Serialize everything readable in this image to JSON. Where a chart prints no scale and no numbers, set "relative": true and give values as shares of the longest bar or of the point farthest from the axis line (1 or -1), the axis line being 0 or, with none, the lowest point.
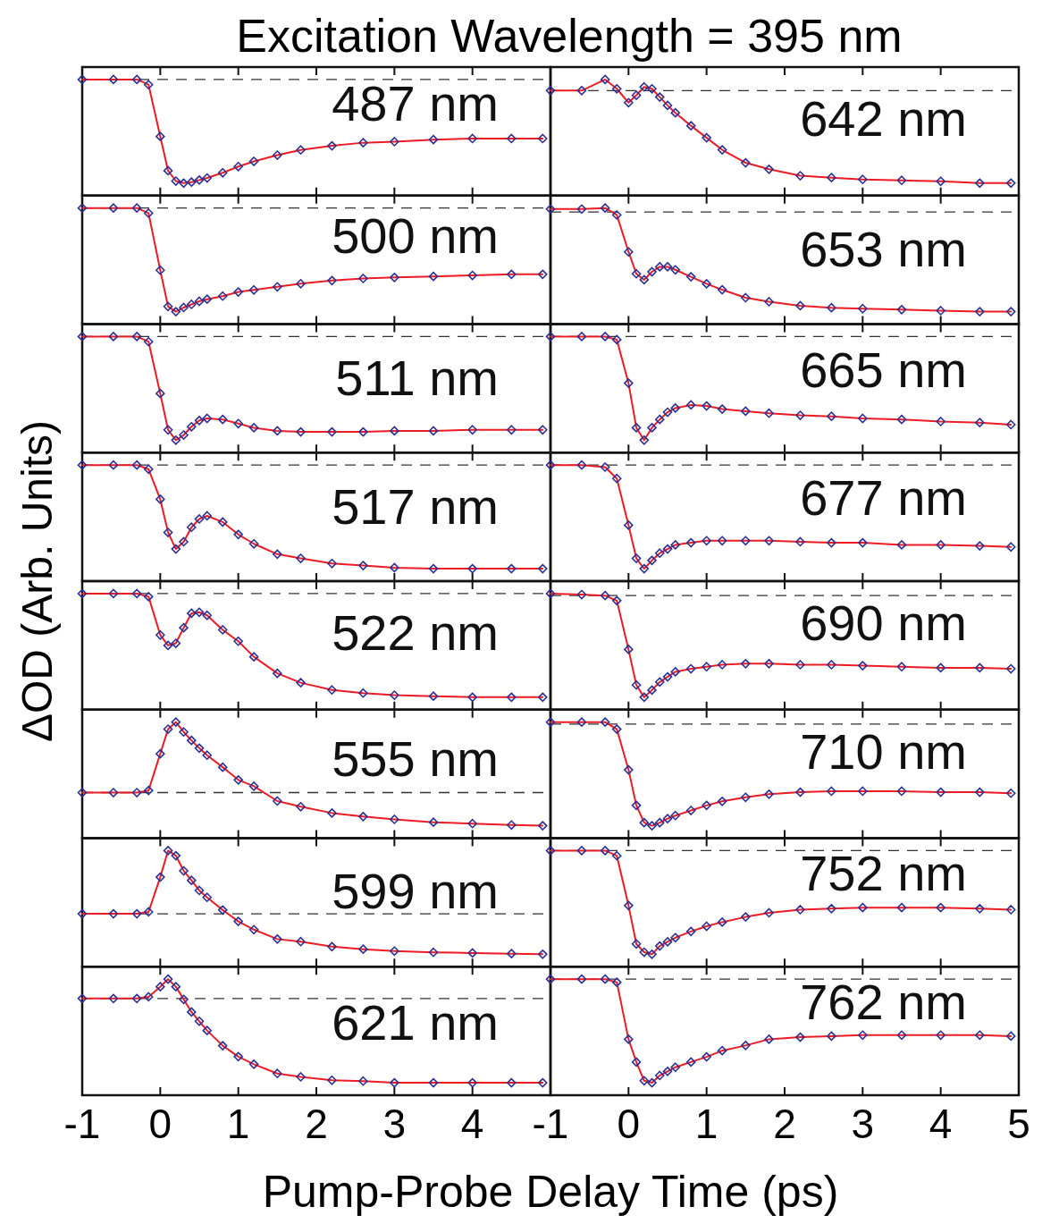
{
  "chart_data": [
    {
      "type": "line",
      "title": "Excitation Wavelength = 395 nm",
      "ylabel": "ΔOD (Arb. Units)",
      "relative": true,
      "xlim": [
        -1,
        5
      ],
      "xticks": [
        -1,
        0,
        1,
        2,
        3,
        4
      ],
      "tick_labels": false,
      "marker": "diamond",
      "ref_lines": [
        {
          "axis": "y",
          "value": 0,
          "line_style": "dashed"
        }
      ],
      "annotations": [
        "487 nm"
      ],
      "x": [
        -1,
        -0.6,
        -0.3,
        -0.15,
        0,
        0.1,
        0.2,
        0.3,
        0.4,
        0.5,
        0.6,
        0.8,
        1,
        1.2,
        1.5,
        1.8,
        2.2,
        2.6,
        3,
        3.5,
        4,
        4.5,
        4.9
      ],
      "series": [
        {
          "type": "scatter",
          "color": "#2e3192",
          "values": [
            0,
            0,
            0,
            -0.05,
            -0.55,
            -0.88,
            -0.98,
            -1,
            -0.99,
            -0.97,
            -0.95,
            -0.9,
            -0.84,
            -0.79,
            -0.73,
            -0.68,
            -0.64,
            -0.61,
            -0.6,
            -0.58,
            -0.57,
            -0.57,
            -0.57
          ]
        },
        {
          "type": "line",
          "color": "#ed1c24",
          "marker": "none",
          "values": [
            0,
            0,
            0,
            -0.05,
            -0.55,
            -0.88,
            -0.98,
            -1,
            -0.99,
            -0.97,
            -0.95,
            -0.9,
            -0.84,
            -0.79,
            -0.73,
            -0.68,
            -0.64,
            -0.61,
            -0.6,
            -0.58,
            -0.57,
            -0.57,
            -0.57
          ]
        }
      ]
    },
    {
      "type": "line",
      "relative": true,
      "xlim": [
        -1,
        5
      ],
      "xticks": [
        -1,
        0,
        1,
        2,
        3,
        4,
        5
      ],
      "tick_labels": false,
      "marker": "diamond",
      "ref_lines": [
        {
          "axis": "y",
          "value": 0,
          "line_style": "dashed"
        }
      ],
      "annotations": [
        "642 nm"
      ],
      "x": [
        -1,
        -0.6,
        -0.3,
        -0.15,
        0,
        0.1,
        0.2,
        0.3,
        0.4,
        0.5,
        0.6,
        0.8,
        1,
        1.2,
        1.5,
        1.8,
        2.2,
        2.6,
        3,
        3.5,
        4,
        4.5,
        4.9
      ],
      "series": [
        {
          "type": "scatter",
          "color": "#2e3192",
          "values": [
            0,
            0,
            0.12,
            0.02,
            -0.13,
            -0.05,
            0.04,
            0.02,
            -0.07,
            -0.16,
            -0.24,
            -0.38,
            -0.51,
            -0.64,
            -0.78,
            -0.85,
            -0.92,
            -0.94,
            -0.96,
            -0.97,
            -0.98,
            -1,
            -1
          ]
        },
        {
          "type": "line",
          "color": "#ed1c24",
          "marker": "none",
          "values": [
            0,
            0,
            0.12,
            0.02,
            -0.13,
            -0.05,
            0.04,
            0.02,
            -0.07,
            -0.16,
            -0.24,
            -0.38,
            -0.51,
            -0.64,
            -0.78,
            -0.85,
            -0.92,
            -0.94,
            -0.96,
            -0.97,
            -0.98,
            -1,
            -1
          ]
        }
      ]
    },
    {
      "type": "line",
      "relative": true,
      "xlim": [
        -1,
        5
      ],
      "xticks": [
        -1,
        0,
        1,
        2,
        3,
        4
      ],
      "tick_labels": false,
      "marker": "diamond",
      "ref_lines": [
        {
          "axis": "y",
          "value": 0,
          "line_style": "dashed"
        }
      ],
      "annotations": [
        "500 nm"
      ],
      "x": [
        -1,
        -0.6,
        -0.3,
        -0.15,
        0,
        0.1,
        0.2,
        0.3,
        0.4,
        0.5,
        0.6,
        0.8,
        1,
        1.2,
        1.5,
        1.8,
        2.2,
        2.6,
        3,
        3.5,
        4,
        4.5,
        4.9
      ],
      "series": [
        {
          "type": "scatter",
          "color": "#2e3192",
          "values": [
            0,
            0,
            0,
            -0.05,
            -0.6,
            -0.95,
            -1,
            -0.96,
            -0.93,
            -0.9,
            -0.88,
            -0.85,
            -0.81,
            -0.79,
            -0.76,
            -0.73,
            -0.7,
            -0.68,
            -0.67,
            -0.66,
            -0.65,
            -0.64,
            -0.64
          ]
        },
        {
          "type": "line",
          "color": "#ed1c24",
          "marker": "none",
          "values": [
            0,
            0,
            0,
            -0.05,
            -0.6,
            -0.95,
            -1,
            -0.96,
            -0.93,
            -0.9,
            -0.88,
            -0.85,
            -0.81,
            -0.79,
            -0.76,
            -0.73,
            -0.7,
            -0.68,
            -0.67,
            -0.66,
            -0.65,
            -0.64,
            -0.64
          ]
        }
      ]
    },
    {
      "type": "line",
      "relative": true,
      "xlim": [
        -1,
        5
      ],
      "xticks": [
        -1,
        0,
        1,
        2,
        3,
        4,
        5
      ],
      "tick_labels": false,
      "marker": "diamond",
      "ref_lines": [
        {
          "axis": "y",
          "value": 0,
          "line_style": "dashed"
        }
      ],
      "annotations": [
        "653 nm"
      ],
      "x": [
        -1,
        -0.6,
        -0.3,
        -0.15,
        0,
        0.1,
        0.2,
        0.3,
        0.4,
        0.5,
        0.6,
        0.8,
        1,
        1.2,
        1.5,
        1.8,
        2.2,
        2.6,
        3,
        3.5,
        4,
        4.5,
        4.9
      ],
      "series": [
        {
          "type": "scatter",
          "color": "#2e3192",
          "values": [
            0.03,
            0.03,
            0.04,
            -0.03,
            -0.4,
            -0.62,
            -0.68,
            -0.6,
            -0.55,
            -0.55,
            -0.58,
            -0.65,
            -0.72,
            -0.78,
            -0.86,
            -0.9,
            -0.94,
            -0.96,
            -0.97,
            -0.98,
            -0.99,
            -1,
            -1
          ]
        },
        {
          "type": "line",
          "color": "#ed1c24",
          "marker": "none",
          "values": [
            0.03,
            0.03,
            0.04,
            -0.03,
            -0.4,
            -0.62,
            -0.68,
            -0.6,
            -0.55,
            -0.55,
            -0.58,
            -0.65,
            -0.72,
            -0.78,
            -0.86,
            -0.9,
            -0.94,
            -0.96,
            -0.97,
            -0.98,
            -0.99,
            -1,
            -1
          ]
        }
      ]
    },
    {
      "type": "line",
      "relative": true,
      "xlim": [
        -1,
        5
      ],
      "xticks": [
        -1,
        0,
        1,
        2,
        3,
        4
      ],
      "tick_labels": false,
      "marker": "diamond",
      "ref_lines": [
        {
          "axis": "y",
          "value": 0,
          "line_style": "dashed"
        }
      ],
      "annotations": [
        "511 nm"
      ],
      "x": [
        -1,
        -0.6,
        -0.3,
        -0.15,
        0,
        0.1,
        0.2,
        0.3,
        0.4,
        0.5,
        0.6,
        0.8,
        1,
        1.2,
        1.5,
        1.8,
        2.2,
        2.6,
        3,
        3.5,
        4,
        4.5,
        4.9
      ],
      "series": [
        {
          "type": "scatter",
          "color": "#2e3192",
          "values": [
            0,
            0,
            0,
            -0.05,
            -0.55,
            -0.9,
            -1,
            -0.95,
            -0.87,
            -0.81,
            -0.79,
            -0.8,
            -0.84,
            -0.88,
            -0.91,
            -0.92,
            -0.92,
            -0.92,
            -0.91,
            -0.91,
            -0.9,
            -0.9,
            -0.9
          ]
        },
        {
          "type": "line",
          "color": "#ed1c24",
          "marker": "none",
          "values": [
            0,
            0,
            0,
            -0.05,
            -0.55,
            -0.9,
            -1,
            -0.95,
            -0.87,
            -0.81,
            -0.79,
            -0.8,
            -0.84,
            -0.88,
            -0.91,
            -0.92,
            -0.92,
            -0.92,
            -0.91,
            -0.91,
            -0.9,
            -0.9,
            -0.9
          ]
        }
      ]
    },
    {
      "type": "line",
      "relative": true,
      "xlim": [
        -1,
        5
      ],
      "xticks": [
        -1,
        0,
        1,
        2,
        3,
        4,
        5
      ],
      "tick_labels": false,
      "marker": "diamond",
      "ref_lines": [
        {
          "axis": "y",
          "value": 0,
          "line_style": "dashed"
        }
      ],
      "annotations": [
        "665 nm"
      ],
      "x": [
        -1,
        -0.6,
        -0.3,
        -0.15,
        0,
        0.1,
        0.2,
        0.3,
        0.4,
        0.5,
        0.6,
        0.8,
        1,
        1.2,
        1.5,
        1.8,
        2.2,
        2.6,
        3,
        3.5,
        4,
        4.5,
        4.9
      ],
      "series": [
        {
          "type": "scatter",
          "color": "#2e3192",
          "values": [
            0,
            0,
            0,
            -0.03,
            -0.45,
            -0.88,
            -1,
            -0.88,
            -0.8,
            -0.73,
            -0.69,
            -0.66,
            -0.67,
            -0.7,
            -0.72,
            -0.74,
            -0.76,
            -0.77,
            -0.79,
            -0.8,
            -0.82,
            -0.83,
            -0.85
          ]
        },
        {
          "type": "line",
          "color": "#ed1c24",
          "marker": "none",
          "values": [
            0,
            0,
            0,
            -0.03,
            -0.45,
            -0.88,
            -1,
            -0.88,
            -0.8,
            -0.73,
            -0.69,
            -0.66,
            -0.67,
            -0.7,
            -0.72,
            -0.74,
            -0.76,
            -0.77,
            -0.79,
            -0.8,
            -0.82,
            -0.83,
            -0.85
          ]
        }
      ]
    },
    {
      "type": "line",
      "relative": true,
      "xlim": [
        -1,
        5
      ],
      "xticks": [
        -1,
        0,
        1,
        2,
        3,
        4
      ],
      "tick_labels": false,
      "marker": "diamond",
      "ref_lines": [
        {
          "axis": "y",
          "value": 0,
          "line_style": "dashed"
        }
      ],
      "annotations": [
        "517 nm"
      ],
      "x": [
        -1,
        -0.6,
        -0.3,
        -0.15,
        0,
        0.1,
        0.2,
        0.3,
        0.4,
        0.5,
        0.6,
        0.8,
        1,
        1.2,
        1.5,
        1.8,
        2.2,
        2.6,
        3,
        3.5,
        4,
        4.5,
        4.9
      ],
      "series": [
        {
          "type": "scatter",
          "color": "#2e3192",
          "values": [
            0,
            0,
            0,
            -0.04,
            -0.33,
            -0.65,
            -0.81,
            -0.74,
            -0.6,
            -0.52,
            -0.49,
            -0.55,
            -0.67,
            -0.76,
            -0.86,
            -0.9,
            -0.95,
            -0.97,
            -0.99,
            -1,
            -1,
            -1,
            -1
          ]
        },
        {
          "type": "line",
          "color": "#ed1c24",
          "marker": "none",
          "values": [
            0,
            0,
            0,
            -0.04,
            -0.33,
            -0.65,
            -0.81,
            -0.74,
            -0.6,
            -0.52,
            -0.49,
            -0.55,
            -0.67,
            -0.76,
            -0.86,
            -0.9,
            -0.95,
            -0.97,
            -0.99,
            -1,
            -1,
            -1,
            -1
          ]
        }
      ]
    },
    {
      "type": "line",
      "relative": true,
      "xlim": [
        -1,
        5
      ],
      "xticks": [
        -1,
        0,
        1,
        2,
        3,
        4,
        5
      ],
      "tick_labels": false,
      "marker": "diamond",
      "ref_lines": [
        {
          "axis": "y",
          "value": 0,
          "line_style": "dashed"
        }
      ],
      "annotations": [
        "677 nm"
      ],
      "x": [
        -1,
        -0.6,
        -0.3,
        -0.15,
        0,
        0.1,
        0.2,
        0.3,
        0.4,
        0.5,
        0.6,
        0.8,
        1,
        1.2,
        1.5,
        1.8,
        2.2,
        2.6,
        3,
        3.5,
        4,
        4.5,
        4.9
      ],
      "series": [
        {
          "type": "scatter",
          "color": "#2e3192",
          "values": [
            0,
            0,
            -0.02,
            -0.13,
            -0.58,
            -0.9,
            -1,
            -0.92,
            -0.85,
            -0.81,
            -0.77,
            -0.75,
            -0.73,
            -0.73,
            -0.73,
            -0.73,
            -0.74,
            -0.75,
            -0.75,
            -0.77,
            -0.77,
            -0.78,
            -0.79
          ]
        },
        {
          "type": "line",
          "color": "#ed1c24",
          "marker": "none",
          "values": [
            0,
            0,
            -0.02,
            -0.13,
            -0.58,
            -0.9,
            -1,
            -0.92,
            -0.85,
            -0.81,
            -0.77,
            -0.75,
            -0.73,
            -0.73,
            -0.73,
            -0.73,
            -0.74,
            -0.75,
            -0.75,
            -0.77,
            -0.77,
            -0.78,
            -0.79
          ]
        }
      ]
    },
    {
      "type": "line",
      "relative": true,
      "xlim": [
        -1,
        5
      ],
      "xticks": [
        -1,
        0,
        1,
        2,
        3,
        4
      ],
      "tick_labels": false,
      "marker": "diamond",
      "ref_lines": [
        {
          "axis": "y",
          "value": 0,
          "line_style": "dashed"
        }
      ],
      "annotations": [
        "522 nm"
      ],
      "x": [
        -1,
        -0.6,
        -0.3,
        -0.15,
        0,
        0.1,
        0.2,
        0.3,
        0.4,
        0.5,
        0.6,
        0.8,
        1,
        1.2,
        1.5,
        1.8,
        2.2,
        2.6,
        3,
        3.5,
        4,
        4.5,
        4.9
      ],
      "series": [
        {
          "type": "scatter",
          "color": "#2e3192",
          "values": [
            0,
            0,
            0,
            -0.03,
            -0.4,
            -0.5,
            -0.48,
            -0.33,
            -0.19,
            -0.18,
            -0.21,
            -0.35,
            -0.46,
            -0.61,
            -0.77,
            -0.86,
            -0.93,
            -0.96,
            -0.98,
            -0.99,
            -1,
            -1,
            -1
          ]
        },
        {
          "type": "line",
          "color": "#ed1c24",
          "marker": "none",
          "values": [
            0,
            0,
            0,
            -0.03,
            -0.4,
            -0.5,
            -0.48,
            -0.33,
            -0.19,
            -0.18,
            -0.21,
            -0.35,
            -0.46,
            -0.61,
            -0.77,
            -0.86,
            -0.93,
            -0.96,
            -0.98,
            -0.99,
            -1,
            -1,
            -1
          ]
        }
      ]
    },
    {
      "type": "line",
      "relative": true,
      "xlim": [
        -1,
        5
      ],
      "xticks": [
        -1,
        0,
        1,
        2,
        3,
        4,
        5
      ],
      "tick_labels": false,
      "marker": "diamond",
      "ref_lines": [
        {
          "axis": "y",
          "value": 0,
          "line_style": "dashed"
        }
      ],
      "annotations": [
        "690 nm"
      ],
      "x": [
        -1,
        -0.6,
        -0.3,
        -0.15,
        0,
        0.1,
        0.2,
        0.3,
        0.4,
        0.5,
        0.6,
        0.8,
        1,
        1.2,
        1.5,
        1.8,
        2.2,
        2.6,
        3,
        3.5,
        4,
        4.5,
        4.9
      ],
      "series": [
        {
          "type": "scatter",
          "color": "#2e3192",
          "values": [
            0.02,
            0.01,
            0,
            -0.05,
            -0.53,
            -0.88,
            -1,
            -0.93,
            -0.85,
            -0.8,
            -0.75,
            -0.72,
            -0.7,
            -0.68,
            -0.67,
            -0.67,
            -0.68,
            -0.68,
            -0.69,
            -0.7,
            -0.71,
            -0.71,
            -0.72
          ]
        },
        {
          "type": "line",
          "color": "#ed1c24",
          "marker": "none",
          "values": [
            0.02,
            0.01,
            0,
            -0.05,
            -0.53,
            -0.88,
            -1,
            -0.93,
            -0.85,
            -0.8,
            -0.75,
            -0.72,
            -0.7,
            -0.68,
            -0.67,
            -0.67,
            -0.68,
            -0.68,
            -0.69,
            -0.7,
            -0.71,
            -0.71,
            -0.72
          ]
        }
      ]
    },
    {
      "type": "line",
      "relative": true,
      "xlim": [
        -1,
        5
      ],
      "xticks": [
        -1,
        0,
        1,
        2,
        3,
        4
      ],
      "tick_labels": false,
      "marker": "diamond",
      "ref_lines": [
        {
          "axis": "y",
          "value": 0,
          "line_style": "dashed"
        }
      ],
      "annotations": [
        "555 nm"
      ],
      "x": [
        -1,
        -0.6,
        -0.3,
        -0.15,
        0,
        0.1,
        0.2,
        0.3,
        0.4,
        0.5,
        0.6,
        0.8,
        1,
        1.2,
        1.5,
        1.8,
        2.2,
        2.6,
        3,
        3.5,
        4,
        4.5,
        4.9
      ],
      "series": [
        {
          "type": "scatter",
          "color": "#2e3192",
          "values": [
            0,
            0,
            0,
            0.03,
            0.55,
            0.9,
            1,
            0.86,
            0.74,
            0.63,
            0.53,
            0.36,
            0.18,
            0.09,
            -0.12,
            -0.2,
            -0.29,
            -0.34,
            -0.38,
            -0.42,
            -0.44,
            -0.46,
            -0.47
          ]
        },
        {
          "type": "line",
          "color": "#ed1c24",
          "marker": "none",
          "values": [
            0,
            0,
            0,
            0.03,
            0.55,
            0.9,
            1,
            0.86,
            0.74,
            0.63,
            0.53,
            0.36,
            0.18,
            0.09,
            -0.12,
            -0.2,
            -0.29,
            -0.34,
            -0.38,
            -0.42,
            -0.44,
            -0.46,
            -0.47
          ]
        }
      ]
    },
    {
      "type": "line",
      "relative": true,
      "xlim": [
        -1,
        5
      ],
      "xticks": [
        -1,
        0,
        1,
        2,
        3,
        4,
        5
      ],
      "tick_labels": false,
      "marker": "diamond",
      "ref_lines": [
        {
          "axis": "y",
          "value": 0,
          "line_style": "dashed"
        }
      ],
      "annotations": [
        "710 nm"
      ],
      "x": [
        -1,
        -0.6,
        -0.3,
        -0.15,
        0,
        0.1,
        0.2,
        0.3,
        0.4,
        0.5,
        0.6,
        0.8,
        1,
        1.2,
        1.5,
        1.8,
        2.2,
        2.6,
        3,
        3.5,
        4,
        4.5,
        4.9
      ],
      "series": [
        {
          "type": "scatter",
          "color": "#2e3192",
          "values": [
            0.02,
            0.02,
            0.02,
            -0.05,
            -0.45,
            -0.8,
            -0.97,
            -1,
            -0.97,
            -0.93,
            -0.9,
            -0.85,
            -0.8,
            -0.76,
            -0.72,
            -0.69,
            -0.67,
            -0.66,
            -0.66,
            -0.66,
            -0.67,
            -0.67,
            -0.68
          ]
        },
        {
          "type": "line",
          "color": "#ed1c24",
          "marker": "none",
          "values": [
            0.02,
            0.02,
            0.02,
            -0.05,
            -0.45,
            -0.8,
            -0.97,
            -1,
            -0.97,
            -0.93,
            -0.9,
            -0.85,
            -0.8,
            -0.76,
            -0.72,
            -0.69,
            -0.67,
            -0.66,
            -0.66,
            -0.66,
            -0.67,
            -0.67,
            -0.68
          ]
        }
      ]
    },
    {
      "type": "line",
      "relative": true,
      "xlim": [
        -1,
        5
      ],
      "xticks": [
        -1,
        0,
        1,
        2,
        3,
        4
      ],
      "tick_labels": false,
      "marker": "diamond",
      "ref_lines": [
        {
          "axis": "y",
          "value": 0,
          "line_style": "dashed"
        }
      ],
      "annotations": [
        "599 nm"
      ],
      "x": [
        -1,
        -0.6,
        -0.3,
        -0.15,
        0,
        0.1,
        0.2,
        0.3,
        0.4,
        0.5,
        0.6,
        0.8,
        1,
        1.2,
        1.5,
        1.8,
        2.2,
        2.6,
        3,
        3.5,
        4,
        4.5,
        4.9
      ],
      "series": [
        {
          "type": "scatter",
          "color": "#2e3192",
          "values": [
            0,
            0,
            0,
            0.03,
            0.58,
            1,
            0.92,
            0.68,
            0.53,
            0.37,
            0.26,
            0.06,
            -0.12,
            -0.25,
            -0.4,
            -0.44,
            -0.52,
            -0.56,
            -0.59,
            -0.61,
            -0.62,
            -0.63,
            -0.64
          ]
        },
        {
          "type": "line",
          "color": "#ed1c24",
          "marker": "none",
          "values": [
            0,
            0,
            0,
            0.03,
            0.58,
            1,
            0.92,
            0.68,
            0.53,
            0.37,
            0.26,
            0.06,
            -0.12,
            -0.25,
            -0.4,
            -0.44,
            -0.52,
            -0.56,
            -0.59,
            -0.61,
            -0.62,
            -0.63,
            -0.64
          ]
        }
      ]
    },
    {
      "type": "line",
      "relative": true,
      "xlim": [
        -1,
        5
      ],
      "xticks": [
        -1,
        0,
        1,
        2,
        3,
        4,
        5
      ],
      "tick_labels": false,
      "marker": "diamond",
      "ref_lines": [
        {
          "axis": "y",
          "value": 0,
          "line_style": "dashed"
        }
      ],
      "annotations": [
        "752 nm"
      ],
      "x": [
        -1,
        -0.6,
        -0.3,
        -0.15,
        0,
        0.1,
        0.2,
        0.3,
        0.4,
        0.5,
        0.6,
        0.8,
        1,
        1.2,
        1.5,
        1.8,
        2.2,
        2.6,
        3,
        3.5,
        4,
        4.5,
        4.9
      ],
      "series": [
        {
          "type": "scatter",
          "color": "#2e3192",
          "values": [
            0,
            0,
            0,
            -0.05,
            -0.53,
            -0.9,
            -0.98,
            -1,
            -0.92,
            -0.88,
            -0.84,
            -0.78,
            -0.73,
            -0.69,
            -0.64,
            -0.6,
            -0.57,
            -0.56,
            -0.55,
            -0.55,
            -0.55,
            -0.56,
            -0.57
          ]
        },
        {
          "type": "line",
          "color": "#ed1c24",
          "marker": "none",
          "values": [
            0,
            0,
            0,
            -0.05,
            -0.53,
            -0.9,
            -0.98,
            -1,
            -0.92,
            -0.88,
            -0.84,
            -0.78,
            -0.73,
            -0.69,
            -0.64,
            -0.6,
            -0.57,
            -0.56,
            -0.55,
            -0.55,
            -0.55,
            -0.56,
            -0.57
          ]
        }
      ]
    },
    {
      "type": "line",
      "xlabel": "Pump-Probe Delay Time (ps)",
      "relative": true,
      "xlim": [
        -1,
        5
      ],
      "xticks": [
        -1,
        0,
        1,
        2,
        3,
        4
      ],
      "tick_labels": "x",
      "marker": "diamond",
      "ref_lines": [
        {
          "axis": "y",
          "value": 0,
          "line_style": "dashed"
        }
      ],
      "annotations": [
        "621 nm"
      ],
      "x": [
        -1,
        -0.6,
        -0.3,
        -0.15,
        0,
        0.1,
        0.2,
        0.3,
        0.4,
        0.5,
        0.6,
        0.8,
        1,
        1.2,
        1.5,
        1.8,
        2.2,
        2.6,
        3,
        3.5,
        4,
        4.5,
        4.9
      ],
      "series": [
        {
          "type": "scatter",
          "color": "#2e3192",
          "values": [
            0,
            0,
            0,
            0.02,
            0.14,
            0.23,
            0.14,
            -0.01,
            -0.16,
            -0.27,
            -0.38,
            -0.56,
            -0.69,
            -0.78,
            -0.89,
            -0.93,
            -0.97,
            -0.98,
            -1,
            -1,
            -1,
            -1,
            -1
          ]
        },
        {
          "type": "line",
          "color": "#ed1c24",
          "marker": "none",
          "values": [
            0,
            0,
            0,
            0.02,
            0.14,
            0.23,
            0.14,
            -0.01,
            -0.16,
            -0.27,
            -0.38,
            -0.56,
            -0.69,
            -0.78,
            -0.89,
            -0.93,
            -0.97,
            -0.98,
            -1,
            -1,
            -1,
            -1,
            -1
          ]
        }
      ]
    },
    {
      "type": "line",
      "relative": true,
      "xlim": [
        -1,
        5
      ],
      "xticks": [
        -1,
        0,
        1,
        2,
        3,
        4,
        5
      ],
      "tick_labels": "x",
      "marker": "diamond",
      "ref_lines": [
        {
          "axis": "y",
          "value": 0,
          "line_style": "dashed"
        }
      ],
      "annotations": [
        "762 nm"
      ],
      "x": [
        -1,
        -0.6,
        -0.3,
        -0.15,
        0,
        0.1,
        0.2,
        0.3,
        0.4,
        0.5,
        0.6,
        0.8,
        1,
        1.2,
        1.5,
        1.8,
        2.2,
        2.6,
        3,
        3.5,
        4,
        4.5,
        4.9
      ],
      "series": [
        {
          "type": "scatter",
          "color": "#2e3192",
          "values": [
            0,
            0,
            0,
            -0.03,
            -0.58,
            -0.8,
            -0.98,
            -1,
            -0.93,
            -0.89,
            -0.85,
            -0.8,
            -0.75,
            -0.69,
            -0.64,
            -0.58,
            -0.56,
            -0.55,
            -0.54,
            -0.54,
            -0.54,
            -0.54,
            -0.55
          ]
        },
        {
          "type": "line",
          "color": "#ed1c24",
          "marker": "none",
          "values": [
            0,
            0,
            0,
            -0.03,
            -0.58,
            -0.8,
            -0.98,
            -1,
            -0.93,
            -0.89,
            -0.85,
            -0.8,
            -0.75,
            -0.69,
            -0.64,
            -0.58,
            -0.56,
            -0.55,
            -0.54,
            -0.54,
            -0.54,
            -0.54,
            -0.55
          ]
        }
      ]
    }
  ]
}
